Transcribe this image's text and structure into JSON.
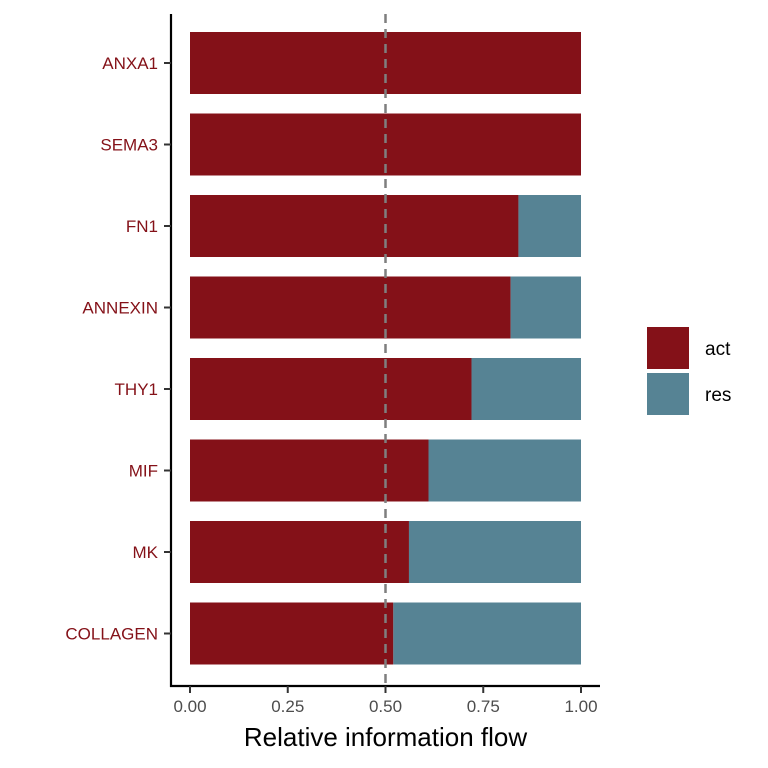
{
  "chart_data": {
    "type": "bar",
    "orientation": "horizontal",
    "stacked": true,
    "normalized": true,
    "title": "",
    "xlabel": "Relative information flow",
    "ylabel": "",
    "xlim": [
      0,
      1
    ],
    "x_ticks": [
      "0.00",
      "0.25",
      "0.50",
      "0.75",
      "1.00"
    ],
    "categories": [
      "ANXA1",
      "SEMA3",
      "FN1",
      "ANNEXIN",
      "THY1",
      "MIF",
      "MK",
      "COLLAGEN"
    ],
    "series": [
      {
        "name": "act",
        "color": "#841118",
        "values": [
          1.0,
          1.0,
          0.84,
          0.82,
          0.72,
          0.61,
          0.56,
          0.52
        ]
      },
      {
        "name": "res",
        "color": "#568394",
        "values": [
          0.0,
          0.0,
          0.16,
          0.18,
          0.28,
          0.39,
          0.44,
          0.48
        ]
      }
    ],
    "reference_line": {
      "x": 0.5,
      "style": "dashed",
      "color": "#7f7f7f"
    },
    "legend_position": "right",
    "grid": false,
    "category_label_color": "#841118"
  }
}
